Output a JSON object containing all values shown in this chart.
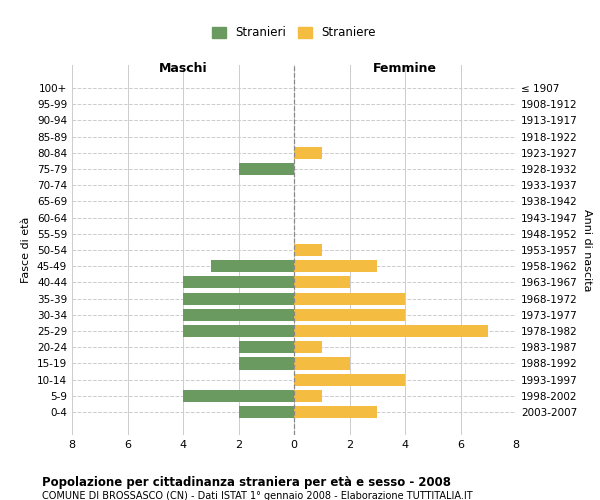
{
  "age_groups": [
    "100+",
    "95-99",
    "90-94",
    "85-89",
    "80-84",
    "75-79",
    "70-74",
    "65-69",
    "60-64",
    "55-59",
    "50-54",
    "45-49",
    "40-44",
    "35-39",
    "30-34",
    "25-29",
    "20-24",
    "15-19",
    "10-14",
    "5-9",
    "0-4"
  ],
  "birth_years": [
    "≤ 1907",
    "1908-1912",
    "1913-1917",
    "1918-1922",
    "1923-1927",
    "1928-1932",
    "1933-1937",
    "1938-1942",
    "1943-1947",
    "1948-1952",
    "1953-1957",
    "1958-1962",
    "1963-1967",
    "1968-1972",
    "1973-1977",
    "1978-1982",
    "1983-1987",
    "1988-1992",
    "1993-1997",
    "1998-2002",
    "2003-2007"
  ],
  "maschi": [
    0,
    0,
    0,
    0,
    0,
    2,
    0,
    0,
    0,
    0,
    0,
    3,
    4,
    4,
    4,
    4,
    2,
    2,
    0,
    4,
    2
  ],
  "femmine": [
    0,
    0,
    0,
    0,
    1,
    0,
    0,
    0,
    0,
    0,
    1,
    3,
    2,
    4,
    4,
    7,
    1,
    2,
    4,
    1,
    3
  ],
  "color_maschi": "#6a9a5f",
  "color_femmine": "#f5bc42",
  "title": "Popolazione per cittadinanza straniera per età e sesso - 2008",
  "subtitle": "COMUNE DI BROSSASCO (CN) - Dati ISTAT 1° gennaio 2008 - Elaborazione TUTTITALIA.IT",
  "xlabel_left": "Maschi",
  "xlabel_right": "Femmine",
  "ylabel_left": "Fasce di età",
  "ylabel_right": "Anni di nascita",
  "legend_maschi": "Stranieri",
  "legend_femmine": "Straniere",
  "xlim": 8,
  "background_color": "#ffffff",
  "grid_color": "#cccccc"
}
